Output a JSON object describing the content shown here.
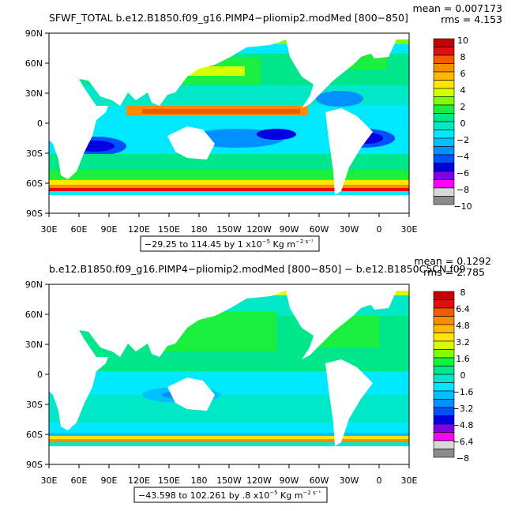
{
  "chart_data": [
    {
      "type": "heatmap",
      "title": "SFWF_TOTAL b.e12.B1850.f09_g16.PIMP4−pliomip2.modMed [800−850]",
      "stats": {
        "mean": "mean = 0.007173",
        "rms": "rms = 4.153"
      },
      "x_ticks": [
        "30E",
        "60E",
        "90E",
        "120E",
        "150E",
        "180",
        "150W",
        "120W",
        "90W",
        "60W",
        "30W",
        "0",
        "30E"
      ],
      "y_ticks": [
        "90N",
        "60N",
        "30N",
        "0",
        "30S",
        "60S",
        "90S"
      ],
      "xlim": [
        30,
        390
      ],
      "ylim": [
        -90,
        90
      ],
      "colorbar": {
        "labels": [
          "10",
          "8",
          "6",
          "4",
          "2",
          "0",
          "−2",
          "−4",
          "−6",
          "−8",
          "−10"
        ],
        "min": -10,
        "max": 10,
        "step": 1
      },
      "range_box": {
        "text": "−29.25 to 114.45 by 1 x10",
        "exp": "−5",
        "units": " Kg m",
        "units_exp": "−2 s⁻¹"
      }
    },
    {
      "type": "heatmap",
      "title": "b.e12.B1850.f09_g16.PIMP4−pliomip2.modMed [800−850] − b.e12.B1850C5CN.f09",
      "stats": {
        "mean": "mean = 0.1292",
        "rms": "rms = 2.785"
      },
      "x_ticks": [
        "30E",
        "60E",
        "90E",
        "120E",
        "150E",
        "180",
        "150W",
        "120W",
        "90W",
        "60W",
        "30W",
        "0",
        "30E"
      ],
      "y_ticks": [
        "90N",
        "60N",
        "30N",
        "0",
        "30S",
        "60S",
        "90S"
      ],
      "xlim": [
        30,
        390
      ],
      "ylim": [
        -90,
        90
      ],
      "colorbar": {
        "labels": [
          "8",
          "6.4",
          "4.8",
          "3.2",
          "1.6",
          "0",
          "−1.6",
          "−3.2",
          "−4.8",
          "−6.4",
          "−8"
        ],
        "min": -8,
        "max": 8,
        "step": 0.8
      },
      "range_box": {
        "text": "−43.598 to 102.261 by .8 x10",
        "exp": "−5",
        "units": " Kg m",
        "units_exp": "−2 s⁻¹"
      }
    }
  ],
  "colors": {
    "scale_top_to_bottom": [
      "#c40000",
      "#e11010",
      "#f05a00",
      "#fa8c00",
      "#ffb800",
      "#ffe600",
      "#d6ff00",
      "#80ff00",
      "#1aef40",
      "#00e68a",
      "#00e8c8",
      "#00e8ff",
      "#00c0ff",
      "#0090ff",
      "#0050ff",
      "#0000e0",
      "#8000e6",
      "#ff00ff",
      "#d8d8d8",
      "#8c8c8c"
    ],
    "land": "#ffffff"
  }
}
